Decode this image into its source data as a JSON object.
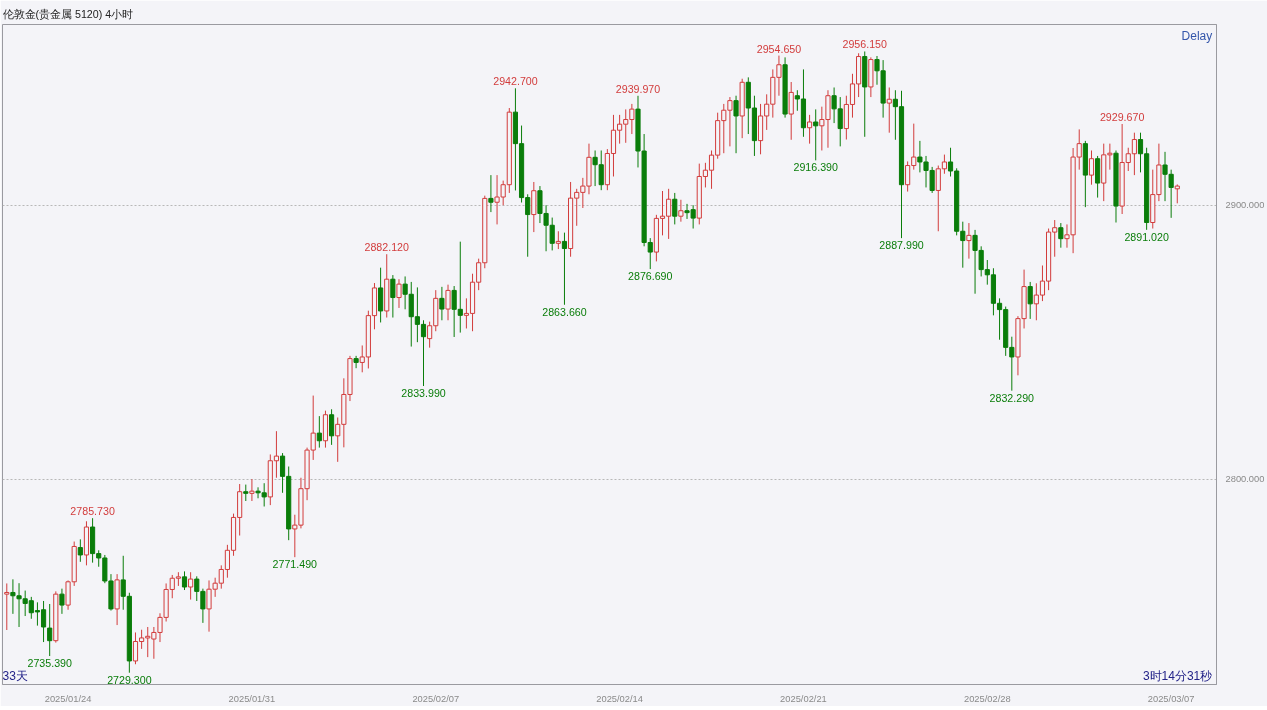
{
  "chart_data": {
    "type": "candlestick",
    "title": "伦敦金(贵金属 5120)   4小时",
    "categories": [
      null,
      null,
      null,
      null,
      null,
      null,
      null,
      null,
      null,
      null,
      "2025/01/24",
      null,
      null,
      null,
      null,
      null,
      null,
      null,
      null,
      null,
      null,
      null,
      null,
      null,
      null,
      null,
      null,
      null,
      null,
      null,
      null,
      null,
      null,
      null,
      null,
      null,
      null,
      null,
      null,
      null,
      "2025/01/31",
      null,
      null,
      null,
      null,
      null,
      null,
      null,
      null,
      null,
      null,
      null,
      null,
      null,
      null,
      null,
      null,
      null,
      null,
      null,
      null,
      null,
      null,
      null,
      null,
      null,
      null,
      null,
      null,
      null,
      "2025/02/07",
      null,
      null,
      null,
      null,
      null,
      null,
      null,
      null,
      null,
      null,
      null,
      null,
      null,
      null,
      null,
      null,
      null,
      null,
      null,
      null,
      null,
      null,
      null,
      null,
      null,
      null,
      null,
      null,
      null,
      "2025/02/14",
      null,
      null,
      null,
      null,
      null,
      null,
      null,
      null,
      null,
      null,
      null,
      null,
      null,
      null,
      null,
      null,
      null,
      null,
      null,
      null,
      null,
      null,
      null,
      null,
      null,
      null,
      null,
      null,
      null,
      "2025/02/21",
      null,
      null,
      null,
      null,
      null,
      null,
      null,
      null,
      null,
      null,
      null,
      null,
      null,
      null,
      null,
      null,
      null,
      null,
      null,
      null,
      null,
      null,
      null,
      null,
      null,
      null,
      null,
      null,
      null,
      "2025/02/28",
      null,
      null,
      null,
      null,
      null,
      null,
      null,
      null,
      null,
      null,
      null,
      null,
      null,
      null,
      null,
      null,
      null,
      null,
      null,
      null,
      null,
      null,
      null,
      null,
      null,
      null,
      null,
      null,
      null,
      "2025/03/07",
      null
    ],
    "ohlc": [
      [
        2758.0,
        2761.9,
        2744.9,
        2758.6
      ],
      [
        2758.6,
        2763.4,
        2750.8,
        2757.4
      ],
      [
        2757.4,
        2762.0,
        2746.0,
        2756.3
      ],
      [
        2756.3,
        2759.3,
        2750.0,
        2754.6
      ],
      [
        2755.6,
        2757.0,
        2749.0,
        2751.2
      ],
      [
        2752.0,
        2755.0,
        2746.5,
        2751.5
      ],
      [
        2752.3,
        2755.5,
        2740.5,
        2746.0
      ],
      [
        2745.6,
        2754.4,
        2735.39,
        2741.0
      ],
      [
        2741.0,
        2759.0,
        2740.3,
        2758.0
      ],
      [
        2758.0,
        2760.0,
        2750.8,
        2754.0
      ],
      [
        2754.0,
        2763.0,
        2752.3,
        2762.5
      ],
      [
        2762.5,
        2777.2,
        2761.0,
        2775.4
      ],
      [
        2775.0,
        2778.0,
        2769.8,
        2772.3
      ],
      [
        2772.3,
        2784.6,
        2768.5,
        2782.5
      ],
      [
        2782.5,
        2785.73,
        2769.5,
        2772.8
      ],
      [
        2772.8,
        2774.0,
        2768.0,
        2771.2
      ],
      [
        2771.2,
        2772.3,
        2762.0,
        2762.8
      ],
      [
        2762.8,
        2765.3,
        2752.0,
        2752.6
      ],
      [
        2752.6,
        2765.3,
        2746.7,
        2763.2
      ],
      [
        2763.2,
        2772.0,
        2752.3,
        2757.2
      ],
      [
        2757.2,
        2758.5,
        2729.3,
        2733.6
      ],
      [
        2733.6,
        2744.0,
        2732.4,
        2740.7
      ],
      [
        2740.7,
        2745.0,
        2738.0,
        2742.0
      ],
      [
        2742.0,
        2746.0,
        2735.0,
        2742.6
      ],
      [
        2741.6,
        2746.0,
        2734.4,
        2744.0
      ],
      [
        2744.0,
        2751.0,
        2740.5,
        2749.5
      ],
      [
        2749.5,
        2761.9,
        2748.0,
        2759.7
      ],
      [
        2759.7,
        2765.0,
        2756.5,
        2763.8
      ],
      [
        2763.8,
        2766.0,
        2761.0,
        2764.3
      ],
      [
        2764.3,
        2766.3,
        2759.5,
        2760.6
      ],
      [
        2760.6,
        2766.0,
        2756.0,
        2763.5
      ],
      [
        2763.5,
        2764.5,
        2755.5,
        2759.0
      ],
      [
        2759.0,
        2760.0,
        2747.5,
        2752.6
      ],
      [
        2752.6,
        2763.0,
        2744.3,
        2759.8
      ],
      [
        2759.8,
        2764.0,
        2757.0,
        2762.0
      ],
      [
        2762.0,
        2768.5,
        2760.0,
        2767.0
      ],
      [
        2767.0,
        2776.0,
        2764.0,
        2774.0
      ],
      [
        2774.0,
        2787.4,
        2772.0,
        2786.0
      ],
      [
        2786.0,
        2798.2,
        2779.4,
        2795.4
      ],
      [
        2795.4,
        2798.0,
        2792.0,
        2794.8
      ],
      [
        2794.8,
        2800.0,
        2792.0,
        2795.6
      ],
      [
        2795.6,
        2797.0,
        2793.0,
        2795.0
      ],
      [
        2795.0,
        2798.5,
        2790.0,
        2793.5
      ],
      [
        2793.5,
        2809.0,
        2790.5,
        2806.7
      ],
      [
        2806.7,
        2817.5,
        2800.5,
        2808.4
      ],
      [
        2808.4,
        2809.5,
        2795.0,
        2801.0
      ],
      [
        2801.0,
        2804.6,
        2777.7,
        2781.8
      ],
      [
        2781.8,
        2787.0,
        2771.49,
        2783.2
      ],
      [
        2783.2,
        2800.5,
        2782.0,
        2796.5
      ],
      [
        2796.5,
        2811.5,
        2792.3,
        2810.6
      ],
      [
        2810.6,
        2830.5,
        2807.0,
        2816.8
      ],
      [
        2816.8,
        2823.0,
        2811.5,
        2814.0
      ],
      [
        2814.0,
        2825.0,
        2811.5,
        2823.5
      ],
      [
        2823.5,
        2825.5,
        2812.5,
        2815.8
      ],
      [
        2815.8,
        2822.5,
        2806.3,
        2820.0
      ],
      [
        2820.0,
        2836.8,
        2811.6,
        2830.9
      ],
      [
        2830.9,
        2845.0,
        2828.5,
        2844.0
      ],
      [
        2844.0,
        2845.0,
        2840.5,
        2842.6
      ],
      [
        2842.6,
        2848.8,
        2839.0,
        2844.6
      ],
      [
        2844.6,
        2861.5,
        2840.4,
        2859.7
      ],
      [
        2859.7,
        2871.6,
        2854.7,
        2869.8
      ],
      [
        2869.8,
        2877.2,
        2857.2,
        2861.4
      ],
      [
        2861.4,
        2882.12,
        2859.0,
        2873.0
      ],
      [
        2873.0,
        2874.5,
        2859.0,
        2866.3
      ],
      [
        2866.3,
        2873.0,
        2862.5,
        2871.2
      ],
      [
        2871.2,
        2874.0,
        2862.0,
        2867.5
      ],
      [
        2867.5,
        2872.0,
        2848.4,
        2859.3
      ],
      [
        2859.3,
        2870.0,
        2850.0,
        2856.5
      ],
      [
        2856.5,
        2858.0,
        2833.99,
        2852.0
      ],
      [
        2851.3,
        2857.5,
        2848.0,
        2856.0
      ],
      [
        2856.0,
        2869.0,
        2854.0,
        2866.0
      ],
      [
        2866.0,
        2870.2,
        2858.0,
        2862.1
      ],
      [
        2862.1,
        2871.0,
        2858.0,
        2868.9
      ],
      [
        2868.9,
        2870.5,
        2851.9,
        2862.0
      ],
      [
        2862.0,
        2886.7,
        2853.5,
        2859.8
      ],
      [
        2859.8,
        2866.0,
        2855.0,
        2860.5
      ],
      [
        2860.5,
        2875.0,
        2854.0,
        2871.9
      ],
      [
        2871.9,
        2880.5,
        2869.0,
        2879.0
      ],
      [
        2879.0,
        2903.5,
        2877.0,
        2902.5
      ],
      [
        2902.5,
        2911.0,
        2897.5,
        2901.1
      ],
      [
        2901.1,
        2911.0,
        2893.0,
        2903.0
      ],
      [
        2903.0,
        2909.0,
        2900.0,
        2907.5
      ],
      [
        2907.5,
        2935.5,
        2904.5,
        2934.0
      ],
      [
        2934.0,
        2942.7,
        2905.4,
        2922.5
      ],
      [
        2922.5,
        2929.1,
        2901.0,
        2902.8
      ],
      [
        2902.8,
        2904.0,
        2881.2,
        2896.6
      ],
      [
        2896.6,
        2908.5,
        2890.2,
        2905.3
      ],
      [
        2905.3,
        2907.0,
        2893.5,
        2897.0
      ],
      [
        2897.0,
        2900.0,
        2883.2,
        2892.7
      ],
      [
        2892.7,
        2895.5,
        2883.5,
        2886.1
      ],
      [
        2886.1,
        2890.5,
        2884.0,
        2886.8
      ],
      [
        2886.8,
        2890.0,
        2863.66,
        2884.2
      ],
      [
        2884.2,
        2908.5,
        2881.2,
        2902.6
      ],
      [
        2902.6,
        2906.0,
        2892.5,
        2904.7
      ],
      [
        2904.7,
        2910.0,
        2899.0,
        2907.0
      ],
      [
        2907.0,
        2922.5,
        2904.0,
        2917.5
      ],
      [
        2917.5,
        2920.0,
        2907.0,
        2914.8
      ],
      [
        2914.8,
        2920.0,
        2905.5,
        2907.5
      ],
      [
        2907.5,
        2920.5,
        2905.5,
        2918.9
      ],
      [
        2918.9,
        2933.0,
        2910.5,
        2927.4
      ],
      [
        2927.4,
        2933.0,
        2922.5,
        2929.6
      ],
      [
        2929.6,
        2935.0,
        2922.8,
        2931.3
      ],
      [
        2931.3,
        2937.0,
        2926.0,
        2935.1
      ],
      [
        2935.1,
        2939.97,
        2913.8,
        2919.8
      ],
      [
        2919.8,
        2926.0,
        2885.0,
        2886.4
      ],
      [
        2886.4,
        2888.0,
        2876.69,
        2882.9
      ],
      [
        2882.9,
        2896.5,
        2879.5,
        2895.2
      ],
      [
        2895.2,
        2905.2,
        2889.0,
        2896.0
      ],
      [
        2896.0,
        2906.0,
        2887.7,
        2902.2
      ],
      [
        2902.2,
        2904.5,
        2893.0,
        2896.0
      ],
      [
        2896.0,
        2902.0,
        2894.0,
        2898.0
      ],
      [
        2898.0,
        2900.5,
        2895.0,
        2897.3
      ],
      [
        2898.4,
        2900.0,
        2891.5,
        2895.3
      ],
      [
        2895.3,
        2915.2,
        2893.0,
        2910.5
      ],
      [
        2910.5,
        2915.5,
        2906.5,
        2912.8
      ],
      [
        2912.8,
        2920.0,
        2906.0,
        2918.3
      ],
      [
        2918.3,
        2933.8,
        2917.0,
        2930.9
      ],
      [
        2930.9,
        2937.0,
        2919.0,
        2934.7
      ],
      [
        2934.7,
        2939.5,
        2921.5,
        2938.2
      ],
      [
        2938.2,
        2940.0,
        2919.0,
        2932.6
      ],
      [
        2932.6,
        2946.2,
        2924.5,
        2944.9
      ],
      [
        2944.9,
        2946.7,
        2926.0,
        2935.5
      ],
      [
        2935.5,
        2940.0,
        2918.0,
        2923.6
      ],
      [
        2923.6,
        2937.0,
        2918.6,
        2932.6
      ],
      [
        2932.6,
        2940.5,
        2927.5,
        2936.9
      ],
      [
        2936.9,
        2949.6,
        2932.0,
        2946.7
      ],
      [
        2946.7,
        2954.65,
        2940.0,
        2951.3
      ],
      [
        2951.3,
        2954.0,
        2932.0,
        2933.3
      ],
      [
        2933.3,
        2945.0,
        2923.9,
        2941.2
      ],
      [
        2940.0,
        2942.0,
        2934.5,
        2938.8
      ],
      [
        2938.8,
        2949.6,
        2925.0,
        2928.3
      ],
      [
        2928.3,
        2933.0,
        2922.5,
        2930.4
      ],
      [
        2930.4,
        2935.0,
        2916.39,
        2929.0
      ],
      [
        2929.0,
        2936.0,
        2920.0,
        2931.3
      ],
      [
        2931.3,
        2942.0,
        2921.0,
        2940.0
      ],
      [
        2940.0,
        2943.0,
        2930.0,
        2935.2
      ],
      [
        2935.2,
        2939.5,
        2921.5,
        2928.0
      ],
      [
        2928.0,
        2940.0,
        2924.0,
        2936.8
      ],
      [
        2936.8,
        2948.0,
        2932.0,
        2944.3
      ],
      [
        2944.3,
        2955.5,
        2939.5,
        2954.3
      ],
      [
        2954.3,
        2956.15,
        2925.0,
        2943.2
      ],
      [
        2943.2,
        2954.0,
        2939.5,
        2953.2
      ],
      [
        2953.2,
        2954.5,
        2944.0,
        2949.1
      ],
      [
        2949.1,
        2953.0,
        2932.0,
        2937.3
      ],
      [
        2937.3,
        2943.0,
        2926.5,
        2938.7
      ],
      [
        2938.7,
        2942.0,
        2923.9,
        2936.0
      ],
      [
        2936.0,
        2941.8,
        2887.99,
        2907.5
      ],
      [
        2907.5,
        2916.0,
        2905.0,
        2914.5
      ],
      [
        2914.5,
        2929.8,
        2913.0,
        2917.6
      ],
      [
        2917.6,
        2923.5,
        2912.0,
        2915.8
      ],
      [
        2915.8,
        2918.0,
        2906.5,
        2912.7
      ],
      [
        2912.7,
        2914.0,
        2904.5,
        2905.4
      ],
      [
        2905.4,
        2914.5,
        2890.5,
        2913.3
      ],
      [
        2913.3,
        2918.5,
        2911.5,
        2915.8
      ],
      [
        2915.8,
        2921.0,
        2910.5,
        2912.5
      ],
      [
        2912.5,
        2913.5,
        2889.0,
        2890.5
      ],
      [
        2890.5,
        2894.0,
        2877.2,
        2887.1
      ],
      [
        2887.1,
        2893.5,
        2880.5,
        2889.0
      ],
      [
        2889.0,
        2891.0,
        2867.7,
        2883.5
      ],
      [
        2883.5,
        2885.0,
        2874.0,
        2876.5
      ],
      [
        2876.5,
        2880.0,
        2871.0,
        2874.6
      ],
      [
        2874.6,
        2877.0,
        2859.8,
        2864.2
      ],
      [
        2864.2,
        2866.0,
        2850.9,
        2861.9
      ],
      [
        2861.9,
        2863.0,
        2845.0,
        2848.1
      ],
      [
        2848.1,
        2852.0,
        2832.29,
        2844.6
      ],
      [
        2844.6,
        2859.5,
        2837.9,
        2858.6
      ],
      [
        2858.6,
        2876.5,
        2855.0,
        2870.3
      ],
      [
        2870.3,
        2872.0,
        2858.5,
        2864.0
      ],
      [
        2864.0,
        2871.5,
        2858.0,
        2867.2
      ],
      [
        2867.2,
        2878.0,
        2865.0,
        2872.3
      ],
      [
        2872.3,
        2891.5,
        2869.0,
        2890.2
      ],
      [
        2890.2,
        2894.6,
        2881.2,
        2891.8
      ],
      [
        2891.8,
        2893.5,
        2884.5,
        2887.8
      ],
      [
        2887.8,
        2893.0,
        2884.5,
        2889.2
      ],
      [
        2889.2,
        2920.9,
        2882.5,
        2917.6
      ],
      [
        2917.6,
        2927.7,
        2913.0,
        2922.5
      ],
      [
        2922.5,
        2923.5,
        2899.3,
        2911.0
      ],
      [
        2911.0,
        2920.0,
        2907.5,
        2917.0
      ],
      [
        2917.0,
        2918.0,
        2902.8,
        2908.1
      ],
      [
        2908.1,
        2922.5,
        2901.5,
        2918.4
      ],
      [
        2918.4,
        2922.5,
        2913.0,
        2919.0
      ],
      [
        2919.0,
        2920.0,
        2893.7,
        2899.7
      ],
      [
        2899.7,
        2929.67,
        2896.8,
        2915.6
      ],
      [
        2915.6,
        2921.0,
        2912.5,
        2918.8
      ],
      [
        2918.8,
        2926.5,
        2911.0,
        2924.0
      ],
      [
        2924.0,
        2926.5,
        2912.0,
        2918.8
      ],
      [
        2918.8,
        2921.0,
        2891.02,
        2893.7
      ],
      [
        2893.7,
        2913.0,
        2891.5,
        2903.9
      ],
      [
        2903.9,
        2922.5,
        2901.5,
        2914.7
      ],
      [
        2914.7,
        2919.5,
        2901.5,
        2911.3
      ],
      [
        2911.3,
        2913.0,
        2895.4,
        2906.5
      ],
      [
        2906.0,
        2907.6,
        2900.7,
        2907.0
      ]
    ],
    "colors": [
      "#d23c3c",
      "#0a7d0a",
      "#0a7d0a",
      "#0a7d0a",
      "#0a7d0a",
      "#0a7d0a",
      "#0a7d0a",
      "#0a7d0a",
      "#d23c3c",
      "#0a7d0a",
      "#d23c3c",
      "#d23c3c",
      "#0a7d0a",
      "#d23c3c",
      "#0a7d0a",
      "#0a7d0a",
      "#0a7d0a",
      "#0a7d0a",
      "#d23c3c",
      "#0a7d0a",
      "#0a7d0a",
      "#d23c3c",
      "#d23c3c",
      "#d23c3c",
      "#d23c3c",
      "#d23c3c",
      "#d23c3c",
      "#d23c3c",
      "#d23c3c",
      "#0a7d0a",
      "#d23c3c",
      "#0a7d0a",
      "#0a7d0a",
      "#d23c3c",
      "#d23c3c",
      "#d23c3c",
      "#d23c3c",
      "#d23c3c",
      "#d23c3c",
      "#0a7d0a",
      "#d23c3c",
      "#0a7d0a",
      "#0a7d0a",
      "#d23c3c",
      "#d23c3c",
      "#0a7d0a",
      "#0a7d0a",
      "#d23c3c",
      "#d23c3c",
      "#d23c3c",
      "#d23c3c",
      "#0a7d0a",
      "#d23c3c",
      "#0a7d0a",
      "#d23c3c",
      "#d23c3c",
      "#d23c3c",
      "#0a7d0a",
      "#d23c3c",
      "#d23c3c",
      "#d23c3c",
      "#0a7d0a",
      "#d23c3c",
      "#0a7d0a",
      "#d23c3c",
      "#0a7d0a",
      "#0a7d0a",
      "#0a7d0a",
      "#0a7d0a",
      "#d23c3c",
      "#d23c3c",
      "#0a7d0a",
      "#d23c3c",
      "#0a7d0a",
      "#0a7d0a",
      "#d23c3c",
      "#d23c3c",
      "#d23c3c",
      "#d23c3c",
      "#0a7d0a",
      "#d23c3c",
      "#d23c3c",
      "#d23c3c",
      "#0a7d0a",
      "#0a7d0a",
      "#0a7d0a",
      "#d23c3c",
      "#0a7d0a",
      "#0a7d0a",
      "#0a7d0a",
      "#d23c3c",
      "#0a7d0a",
      "#d23c3c",
      "#d23c3c",
      "#d23c3c",
      "#d23c3c",
      "#0a7d0a",
      "#0a7d0a",
      "#d23c3c",
      "#d23c3c",
      "#d23c3c",
      "#d23c3c",
      "#d23c3c",
      "#0a7d0a",
      "#0a7d0a",
      "#0a7d0a",
      "#d23c3c",
      "#d23c3c",
      "#d23c3c",
      "#0a7d0a",
      "#d23c3c",
      "#0a7d0a",
      "#0a7d0a",
      "#d23c3c",
      "#d23c3c",
      "#d23c3c",
      "#d23c3c",
      "#d23c3c",
      "#d23c3c",
      "#0a7d0a",
      "#d23c3c",
      "#0a7d0a",
      "#0a7d0a",
      "#d23c3c",
      "#d23c3c",
      "#d23c3c",
      "#d23c3c",
      "#0a7d0a",
      "#d23c3c",
      "#0a7d0a",
      "#0a7d0a",
      "#d23c3c",
      "#0a7d0a",
      "#d23c3c",
      "#d23c3c",
      "#0a7d0a",
      "#0a7d0a",
      "#d23c3c",
      "#d23c3c",
      "#d23c3c",
      "#0a7d0a",
      "#d23c3c",
      "#0a7d0a",
      "#0a7d0a",
      "#d23c3c",
      "#0a7d0a",
      "#0a7d0a",
      "#d23c3c",
      "#d23c3c",
      "#0a7d0a",
      "#0a7d0a",
      "#0a7d0a",
      "#d23c3c",
      "#d23c3c",
      "#0a7d0a",
      "#0a7d0a",
      "#0a7d0a",
      "#d23c3c",
      "#0a7d0a",
      "#0a7d0a",
      "#0a7d0a",
      "#0a7d0a",
      "#0a7d0a",
      "#0a7d0a",
      "#0a7d0a",
      "#d23c3c",
      "#d23c3c",
      "#0a7d0a",
      "#d23c3c",
      "#d23c3c",
      "#d23c3c",
      "#d23c3c",
      "#0a7d0a",
      "#d23c3c",
      "#d23c3c",
      "#d23c3c",
      "#0a7d0a",
      "#d23c3c",
      "#0a7d0a",
      "#d23c3c",
      "#d23c3c",
      "#0a7d0a",
      "#d23c3c",
      "#d23c3c",
      "#d23c3c",
      "#0a7d0a",
      "#0a7d0a",
      "#d23c3c",
      "#d23c3c",
      "#0a7d0a",
      "#0a7d0a",
      "#d23c3c"
    ],
    "ylim": [
      2725,
      2966
    ],
    "yticks": [
      {
        "value": 2800,
        "label": "2800.000"
      },
      {
        "value": 2900,
        "label": "2900.000"
      }
    ],
    "grid": "y",
    "annotations": [
      {
        "text": "2785.730",
        "y": 2785.73
      },
      {
        "text": "2735.390",
        "y": 2735.39
      },
      {
        "text": "2729.300",
        "y": 2729.3
      },
      {
        "text": "2771.490",
        "y": 2771.49
      },
      {
        "text": "2882.120",
        "y": 2882.12
      },
      {
        "text": "2833.990",
        "y": 2833.99
      },
      {
        "text": "2942.700",
        "y": 2942.7
      },
      {
        "text": "2863.660",
        "y": 2863.66
      },
      {
        "text": "2939.970",
        "y": 2939.97
      },
      {
        "text": "2876.690",
        "y": 2876.69
      },
      {
        "text": "2954.650",
        "y": 2954.65
      },
      {
        "text": "2916.390",
        "y": 2916.39
      },
      {
        "text": "2956.150",
        "y": 2956.15
      },
      {
        "text": "2887.990",
        "y": 2887.99
      },
      {
        "text": "2832.290",
        "y": 2832.29
      },
      {
        "text": "2929.670",
        "y": 2929.67
      },
      {
        "text": "2891.020",
        "y": 2891.02
      },
      "Delay",
      "33天",
      "3时14分31秒"
    ]
  }
}
